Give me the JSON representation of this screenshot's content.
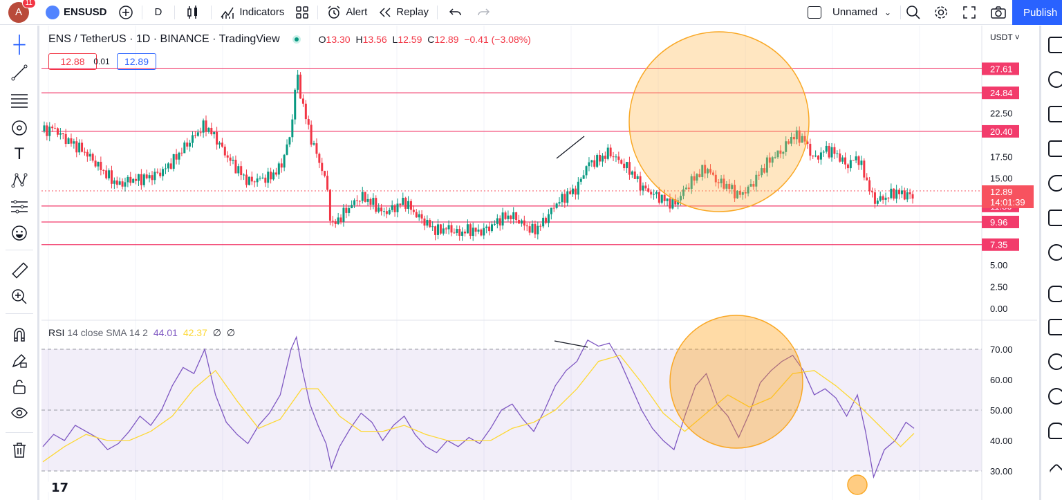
{
  "toolbar": {
    "avatar_letter": "A",
    "notification_count": "11",
    "symbol": "ENSUSD",
    "interval": "D",
    "indicators_label": "Indicators",
    "alert_label": "Alert",
    "replay_label": "Replay",
    "layout_name": "Unnamed",
    "publish_label": "Publish"
  },
  "legend": {
    "title": "ENS / TetherUS · 1D · BINANCE · TradingView",
    "open_label": "O",
    "open": "13.30",
    "high_label": "H",
    "high": "13.56",
    "low_label": "L",
    "low": "12.59",
    "close_label": "C",
    "close": "12.89",
    "change": "−0.41 (−3.08%)",
    "bid": "12.88",
    "spread": "0.01",
    "ask": "12.89"
  },
  "price_axis": {
    "currency": "USDT",
    "ticks": [
      {
        "label": "22.50",
        "value": 22.5
      },
      {
        "label": "17.50",
        "value": 17.5
      },
      {
        "label": "15.00",
        "value": 15
      },
      {
        "label": "5.00",
        "value": 5
      },
      {
        "label": "2.50",
        "value": 2.5
      },
      {
        "label": "0.00",
        "value": 0
      }
    ],
    "levels": [
      {
        "label": "27.61",
        "value": 27.61
      },
      {
        "label": "24.84",
        "value": 24.84
      },
      {
        "label": "20.40",
        "value": 20.4
      },
      {
        "label": "11.80",
        "value": 11.8
      },
      {
        "label": "9.96",
        "value": 9.96
      },
      {
        "label": "7.35",
        "value": 7.35
      }
    ],
    "last_price": "12.89",
    "countdown": "14:01:39",
    "level_color": "#f23b6b",
    "last_color": "#f7525f"
  },
  "rsi": {
    "legend_name": "RSI",
    "legend_params": "14 close SMA 14 2",
    "rsi_value": "44.01",
    "sma_value": "42.37",
    "nan_a": "∅",
    "nan_b": "∅",
    "rsi_color": "#7e57c2",
    "sma_color": "#fdd835",
    "ticks": [
      {
        "label": "70.00",
        "value": 70
      },
      {
        "label": "60.00",
        "value": 60
      },
      {
        "label": "50.00",
        "value": 50
      },
      {
        "label": "40.00",
        "value": 40
      },
      {
        "label": "30.00",
        "value": 30
      }
    ]
  },
  "chart_data": [
    {
      "type": "candlestick",
      "title": "ENS / TetherUS · 1D · BINANCE · TradingView",
      "ylim": [
        0,
        29
      ],
      "close_points": [
        [
          0,
          20.4
        ],
        [
          8,
          20.8
        ],
        [
          16,
          19.6
        ],
        [
          24,
          18.8
        ],
        [
          32,
          17.9
        ],
        [
          40,
          16.6
        ],
        [
          48,
          15.3
        ],
        [
          56,
          14.2
        ],
        [
          64,
          14.8
        ],
        [
          72,
          14.9
        ],
        [
          80,
          15.2
        ],
        [
          88,
          15.7
        ],
        [
          96,
          16.9
        ],
        [
          104,
          18.4
        ],
        [
          112,
          19.8
        ],
        [
          120,
          21.1
        ],
        [
          128,
          19.7
        ],
        [
          136,
          17.6
        ],
        [
          144,
          16.1
        ],
        [
          152,
          14.6
        ],
        [
          160,
          14.9
        ],
        [
          168,
          15.1
        ],
        [
          176,
          16.2
        ],
        [
          184,
          20.2
        ],
        [
          188,
          27.1
        ],
        [
          192,
          24.0
        ],
        [
          198,
          20.0
        ],
        [
          204,
          17.3
        ],
        [
          210,
          14.7
        ],
        [
          214,
          9.4
        ],
        [
          220,
          10.4
        ],
        [
          228,
          11.8
        ],
        [
          236,
          12.9
        ],
        [
          244,
          12.2
        ],
        [
          252,
          11.0
        ],
        [
          260,
          11.5
        ],
        [
          268,
          12.4
        ],
        [
          276,
          10.9
        ],
        [
          284,
          9.9
        ],
        [
          292,
          8.9
        ],
        [
          300,
          9.3
        ],
        [
          308,
          8.6
        ],
        [
          316,
          9.1
        ],
        [
          324,
          8.8
        ],
        [
          332,
          9.4
        ],
        [
          340,
          10.4
        ],
        [
          348,
          10.7
        ],
        [
          356,
          9.7
        ],
        [
          364,
          8.9
        ],
        [
          372,
          10.1
        ],
        [
          380,
          12.0
        ],
        [
          388,
          13.0
        ],
        [
          396,
          13.8
        ],
        [
          404,
          16.7
        ],
        [
          412,
          17.1
        ],
        [
          420,
          18.0
        ],
        [
          428,
          16.9
        ],
        [
          436,
          15.8
        ],
        [
          444,
          14.0
        ],
        [
          452,
          13.2
        ],
        [
          460,
          12.6
        ],
        [
          468,
          11.9
        ],
        [
          476,
          13.7
        ],
        [
          484,
          15.2
        ],
        [
          492,
          16.2
        ],
        [
          500,
          14.6
        ],
        [
          508,
          14.1
        ],
        [
          516,
          13.0
        ],
        [
          524,
          13.9
        ],
        [
          532,
          15.7
        ],
        [
          540,
          17.3
        ],
        [
          548,
          18.1
        ],
        [
          556,
          19.9
        ],
        [
          564,
          19.6
        ],
        [
          572,
          17.1
        ],
        [
          580,
          18.3
        ],
        [
          588,
          17.9
        ],
        [
          596,
          16.4
        ],
        [
          604,
          17.5
        ],
        [
          610,
          15.1
        ],
        [
          616,
          12.4
        ],
        [
          624,
          12.7
        ],
        [
          632,
          13.4
        ],
        [
          640,
          13.1
        ],
        [
          646,
          12.89
        ]
      ]
    },
    {
      "type": "line",
      "ylim": [
        26,
        74
      ],
      "series": [
        {
          "name": "RSI",
          "values": [
            [
              0,
              38
            ],
            [
              8,
              42
            ],
            [
              16,
              40
            ],
            [
              24,
              45
            ],
            [
              32,
              43
            ],
            [
              40,
              41
            ],
            [
              48,
              37
            ],
            [
              56,
              39
            ],
            [
              64,
              43
            ],
            [
              72,
              48
            ],
            [
              80,
              45
            ],
            [
              88,
              50
            ],
            [
              96,
              58
            ],
            [
              104,
              64
            ],
            [
              112,
              62
            ],
            [
              120,
              70
            ],
            [
              128,
              55
            ],
            [
              136,
              46
            ],
            [
              144,
              42
            ],
            [
              152,
              39
            ],
            [
              160,
              45
            ],
            [
              168,
              49
            ],
            [
              176,
              55
            ],
            [
              184,
              70
            ],
            [
              188,
              74
            ],
            [
              192,
              64
            ],
            [
              198,
              52
            ],
            [
              204,
              45
            ],
            [
              210,
              39
            ],
            [
              214,
              31
            ],
            [
              220,
              38
            ],
            [
              228,
              44
            ],
            [
              236,
              49
            ],
            [
              244,
              46
            ],
            [
              252,
              40
            ],
            [
              260,
              45
            ],
            [
              268,
              48
            ],
            [
              276,
              42
            ],
            [
              284,
              38
            ],
            [
              292,
              36
            ],
            [
              300,
              40
            ],
            [
              308,
              38
            ],
            [
              316,
              41
            ],
            [
              324,
              39
            ],
            [
              332,
              44
            ],
            [
              340,
              50
            ],
            [
              348,
              52
            ],
            [
              356,
              47
            ],
            [
              364,
              43
            ],
            [
              372,
              50
            ],
            [
              380,
              58
            ],
            [
              388,
              63
            ],
            [
              396,
              66
            ],
            [
              404,
              73
            ],
            [
              412,
              71
            ],
            [
              420,
              72
            ],
            [
              428,
              66
            ],
            [
              436,
              58
            ],
            [
              444,
              50
            ],
            [
              452,
              44
            ],
            [
              460,
              40
            ],
            [
              468,
              37
            ],
            [
              476,
              48
            ],
            [
              484,
              58
            ],
            [
              492,
              62
            ],
            [
              500,
              52
            ],
            [
              508,
              48
            ],
            [
              516,
              41
            ],
            [
              524,
              49
            ],
            [
              532,
              59
            ],
            [
              540,
              63
            ],
            [
              548,
              66
            ],
            [
              556,
              68
            ],
            [
              564,
              63
            ],
            [
              572,
              55
            ],
            [
              580,
              57
            ],
            [
              588,
              54
            ],
            [
              596,
              48
            ],
            [
              604,
              55
            ],
            [
              610,
              43
            ],
            [
              616,
              28
            ],
            [
              624,
              37
            ],
            [
              632,
              40
            ],
            [
              640,
              46
            ],
            [
              646,
              44
            ]
          ]
        },
        {
          "name": "SMA",
          "values": [
            [
              0,
              33
            ],
            [
              16,
              38
            ],
            [
              32,
              42
            ],
            [
              48,
              40
            ],
            [
              64,
              40
            ],
            [
              80,
              43
            ],
            [
              96,
              48
            ],
            [
              112,
              57
            ],
            [
              128,
              63
            ],
            [
              144,
              53
            ],
            [
              160,
              44
            ],
            [
              176,
              47
            ],
            [
              192,
              57
            ],
            [
              204,
              57
            ],
            [
              220,
              48
            ],
            [
              236,
              43
            ],
            [
              252,
              43
            ],
            [
              268,
              45
            ],
            [
              284,
              42
            ],
            [
              300,
              40
            ],
            [
              316,
              40
            ],
            [
              332,
              40
            ],
            [
              348,
              44
            ],
            [
              364,
              46
            ],
            [
              380,
              50
            ],
            [
              396,
              57
            ],
            [
              412,
              66
            ],
            [
              428,
              68
            ],
            [
              444,
              59
            ],
            [
              460,
              49
            ],
            [
              476,
              43
            ],
            [
              492,
              49
            ],
            [
              508,
              55
            ],
            [
              524,
              51
            ],
            [
              540,
              54
            ],
            [
              556,
              62
            ],
            [
              572,
              63
            ],
            [
              588,
              58
            ],
            [
              604,
              52
            ],
            [
              620,
              45
            ],
            [
              636,
              38
            ],
            [
              646,
              42.37
            ]
          ]
        }
      ]
    }
  ]
}
